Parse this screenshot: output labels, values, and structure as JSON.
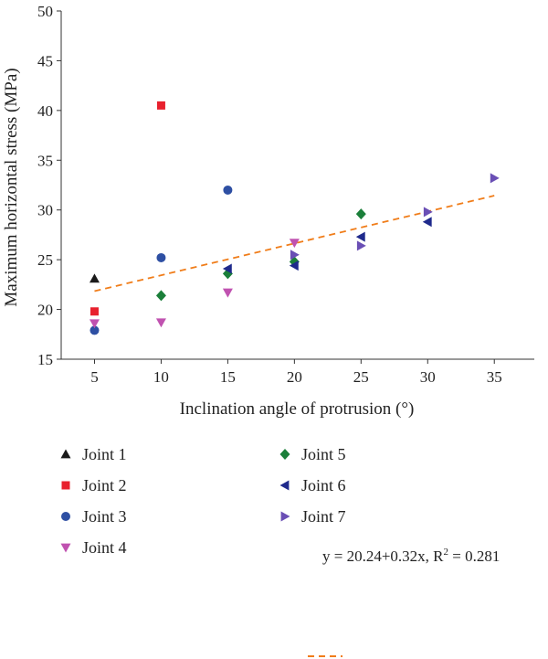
{
  "chart_data": {
    "type": "scatter",
    "title": "",
    "xlabel": "Inclination angle of protrusion (°)",
    "ylabel": "Maximum horizontal stress (MPa)",
    "xlim": [
      2.5,
      38
    ],
    "ylim": [
      15,
      50
    ],
    "xticks": [
      5,
      10,
      15,
      20,
      25,
      30,
      35
    ],
    "yticks": [
      15,
      20,
      25,
      30,
      35,
      40,
      45,
      50
    ],
    "grid": false,
    "legend_position": "bottom",
    "series": [
      {
        "name": "Joint 1",
        "marker": "triangle-up",
        "color": "#1a1a1a",
        "points": [
          {
            "x": 5,
            "y": 23.1
          }
        ]
      },
      {
        "name": "Joint 2",
        "marker": "square",
        "color": "#e8212e",
        "points": [
          {
            "x": 5,
            "y": 19.8
          },
          {
            "x": 10,
            "y": 40.5
          }
        ]
      },
      {
        "name": "Joint 3",
        "marker": "circle",
        "color": "#2e4fa3",
        "points": [
          {
            "x": 5,
            "y": 17.9
          },
          {
            "x": 10,
            "y": 25.2
          },
          {
            "x": 15,
            "y": 32.0
          }
        ]
      },
      {
        "name": "Joint 4",
        "marker": "triangle-down",
        "color": "#c052b0",
        "points": [
          {
            "x": 5,
            "y": 18.6
          },
          {
            "x": 10,
            "y": 18.7
          },
          {
            "x": 15,
            "y": 21.7
          },
          {
            "x": 20,
            "y": 26.7
          }
        ]
      },
      {
        "name": "Joint 5",
        "marker": "diamond",
        "color": "#1b7f3a",
        "points": [
          {
            "x": 10,
            "y": 21.4
          },
          {
            "x": 15,
            "y": 23.6
          },
          {
            "x": 20,
            "y": 24.8
          },
          {
            "x": 25,
            "y": 29.6
          }
        ]
      },
      {
        "name": "Joint 6",
        "marker": "triangle-left",
        "color": "#1f2a8c",
        "points": [
          {
            "x": 15,
            "y": 24.1
          },
          {
            "x": 20,
            "y": 24.4
          },
          {
            "x": 25,
            "y": 27.3
          },
          {
            "x": 30,
            "y": 28.8
          }
        ]
      },
      {
        "name": "Joint 7",
        "marker": "triangle-right",
        "color": "#6a4fb5",
        "points": [
          {
            "x": 20,
            "y": 25.5
          },
          {
            "x": 25,
            "y": 26.4
          },
          {
            "x": 30,
            "y": 29.8
          },
          {
            "x": 35,
            "y": 33.2
          }
        ]
      }
    ],
    "fit": {
      "intercept": 20.24,
      "slope": 0.32,
      "x_range": [
        5,
        35
      ],
      "color": "#f07d1a",
      "style": "dashed",
      "equation_text": "y = 20.24+0.32x, R",
      "r2_superscript": "2",
      "r2_value_text": " = 0.281"
    }
  }
}
